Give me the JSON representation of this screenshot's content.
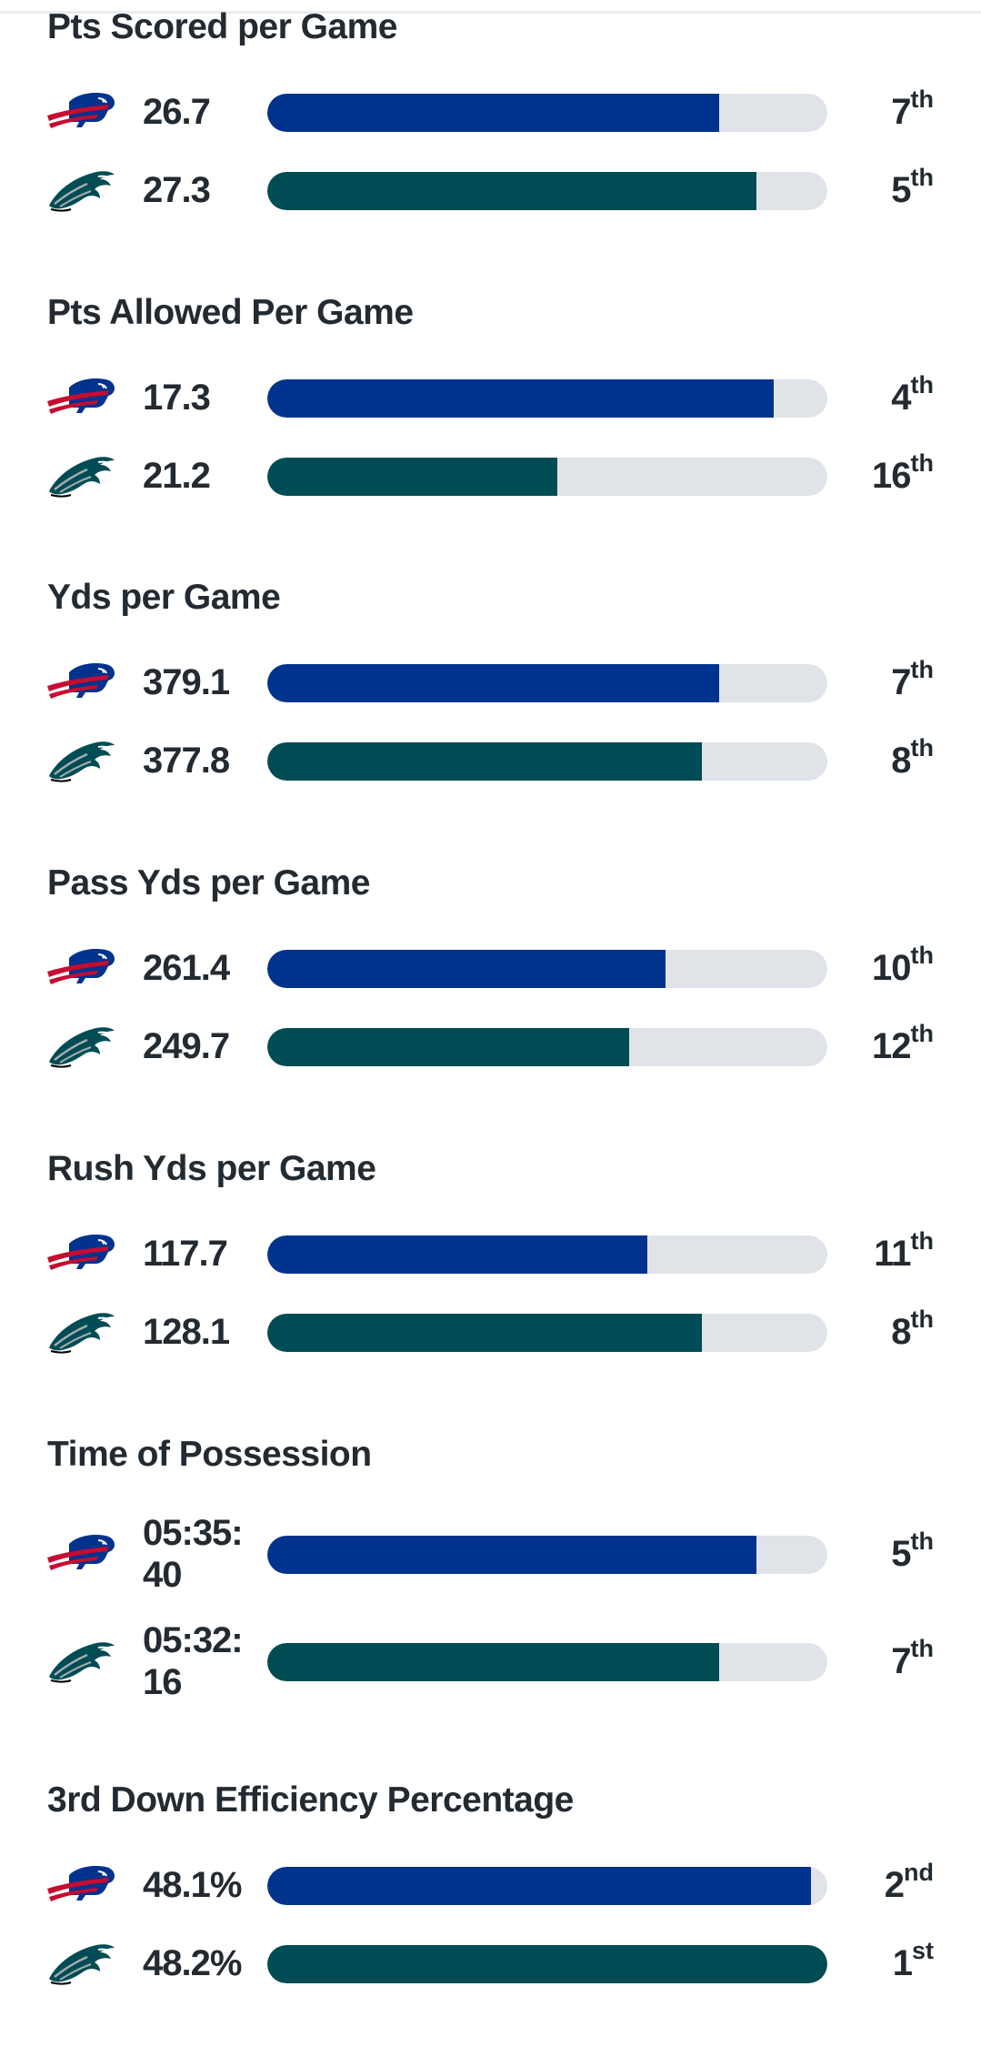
{
  "colors": {
    "bills": "#00338d",
    "eagles": "#004c54",
    "track": "#e0e4e9",
    "text": "#232a31"
  },
  "teams": {
    "bills": {
      "logo_icon": "bills-logo-icon"
    },
    "eagles": {
      "logo_icon": "eagles-logo-icon"
    }
  },
  "stats": [
    {
      "title": "Pts Scored per Game",
      "rows": [
        {
          "team": "bills",
          "value": "26.7",
          "rank": "7",
          "suffix": "th",
          "bar_pct": 80.7
        },
        {
          "team": "eagles",
          "value": "27.3",
          "rank": "5",
          "suffix": "th",
          "bar_pct": 87.3
        }
      ]
    },
    {
      "title": "Pts Allowed Per Game",
      "rows": [
        {
          "team": "bills",
          "value": "17.3",
          "rank": "4",
          "suffix": "th",
          "bar_pct": 90.4
        },
        {
          "team": "eagles",
          "value": "21.2",
          "rank": "16",
          "suffix": "th",
          "bar_pct": 51.8
        }
      ]
    },
    {
      "title": "Yds per Game",
      "rows": [
        {
          "team": "bills",
          "value": "379.1",
          "rank": "7",
          "suffix": "th",
          "bar_pct": 80.7
        },
        {
          "team": "eagles",
          "value": "377.8",
          "rank": "8",
          "suffix": "th",
          "bar_pct": 77.6
        }
      ]
    },
    {
      "title": "Pass Yds per Game",
      "rows": [
        {
          "team": "bills",
          "value": "261.4",
          "rank": "10",
          "suffix": "th",
          "bar_pct": 71.1
        },
        {
          "team": "eagles",
          "value": "249.7",
          "rank": "12",
          "suffix": "th",
          "bar_pct": 64.6
        }
      ]
    },
    {
      "title": "Rush Yds per Game",
      "rows": [
        {
          "team": "bills",
          "value": "117.7",
          "rank": "11",
          "suffix": "th",
          "bar_pct": 67.9
        },
        {
          "team": "eagles",
          "value": "128.1",
          "rank": "8",
          "suffix": "th",
          "bar_pct": 77.6
        }
      ]
    },
    {
      "title": "Time of Possession",
      "rows": [
        {
          "team": "bills",
          "value": "05:35:40",
          "rank": "5",
          "suffix": "th",
          "bar_pct": 87.3
        },
        {
          "team": "eagles",
          "value": "05:32:16",
          "rank": "7",
          "suffix": "th",
          "bar_pct": 80.7
        }
      ]
    },
    {
      "title": "3rd Down Efficiency Percentage",
      "rows": [
        {
          "team": "bills",
          "value": "48.1%",
          "rank": "2",
          "suffix": "nd",
          "bar_pct": 97.1
        },
        {
          "team": "eagles",
          "value": "48.2%",
          "rank": "1",
          "suffix": "st",
          "bar_pct": 100
        }
      ]
    }
  ]
}
